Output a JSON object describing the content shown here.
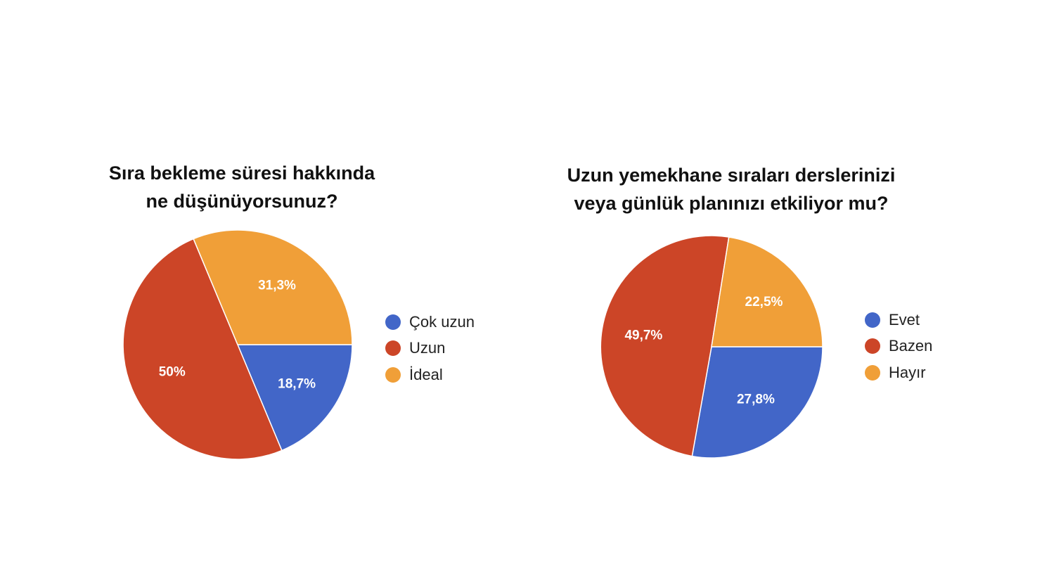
{
  "chart_data": [
    {
      "type": "pie",
      "title_lines": [
        "Sıra bekleme süresi hakkında",
        "ne düşünüyorsunuz?"
      ],
      "legend_position": "right",
      "slices": [
        {
          "name": "Çok uzun",
          "value": 18.7,
          "label": "18,7%",
          "color": "#4266c8"
        },
        {
          "name": "Uzun",
          "value": 50,
          "label": "50%",
          "color": "#cc4527"
        },
        {
          "name": "İdeal",
          "value": 31.3,
          "label": "31,3%",
          "color": "#f09f38"
        }
      ]
    },
    {
      "type": "pie",
      "title_lines": [
        "Uzun yemekhane sıraları derslerinizi",
        "veya günlük planınızı etkiliyor mu?"
      ],
      "legend_position": "right",
      "slices": [
        {
          "name": "Evet",
          "value": 27.8,
          "label": "27,8%",
          "color": "#4266c8"
        },
        {
          "name": "Bazen",
          "value": 49.7,
          "label": "49,7%",
          "color": "#cc4527"
        },
        {
          "name": "Hayır",
          "value": 22.5,
          "label": "22,5%",
          "color": "#f09f38"
        }
      ]
    }
  ]
}
